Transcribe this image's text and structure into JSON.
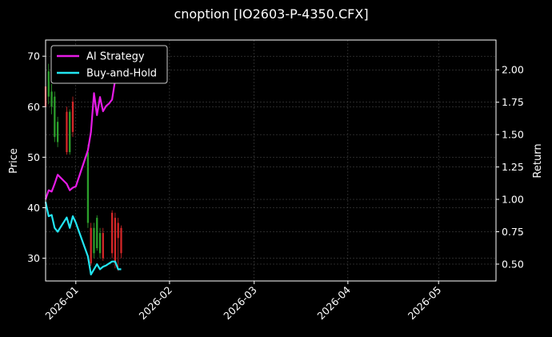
{
  "chart_data": {
    "type": "line",
    "title": "cnoption [IO2603-P-4350.CFX]",
    "xlabel": "",
    "ylabel": "Price",
    "y2label": "Return",
    "x_range": [
      "2025-12-22",
      "2026-05-20"
    ],
    "ylim": [
      25.5,
      73.2
    ],
    "y2lim": [
      0.37,
      2.23
    ],
    "y_ticks": [
      30,
      40,
      50,
      60,
      70
    ],
    "y2_ticks": [
      0.5,
      0.75,
      1.0,
      1.25,
      1.5,
      1.75,
      2.0
    ],
    "y_tick_labels": [
      "30",
      "40",
      "50",
      "60",
      "70"
    ],
    "y2_tick_labels": [
      "0.50",
      "0.75",
      "1.00",
      "1.25",
      "1.50",
      "1.75",
      "2.00"
    ],
    "x_ticks": [
      "2026-01-01",
      "2026-02-01",
      "2026-03-01",
      "2026-04-01",
      "2026-05-01"
    ],
    "x_tick_labels": [
      "2026-01",
      "2026-02",
      "2026-03",
      "2026-04",
      "2026-05"
    ],
    "grid": true,
    "legend_position": "top-left",
    "colors": {
      "background": "#000000",
      "up": "#2ca02c",
      "down": "#d62728",
      "ai": "#e61be6",
      "bh": "#22e5f2",
      "grid": "#555555"
    },
    "series": [
      {
        "name": "AI Strategy",
        "axis": "right",
        "color": "#e61be6",
        "points": [
          [
            "2025-12-22",
            1.0
          ],
          [
            "2025-12-23",
            1.07
          ],
          [
            "2025-12-24",
            1.06
          ],
          [
            "2025-12-25",
            1.12
          ],
          [
            "2025-12-26",
            1.19
          ],
          [
            "2025-12-29",
            1.12
          ],
          [
            "2025-12-30",
            1.07
          ],
          [
            "2025-12-31",
            1.09
          ],
          [
            "2026-01-01",
            1.1
          ],
          [
            "2026-01-02",
            1.17
          ],
          [
            "2026-01-05",
            1.38
          ],
          [
            "2026-01-06",
            1.52
          ],
          [
            "2026-01-07",
            1.82
          ],
          [
            "2026-01-08",
            1.65
          ],
          [
            "2026-01-09",
            1.79
          ],
          [
            "2026-01-10",
            1.68
          ],
          [
            "2026-01-11",
            1.72
          ],
          [
            "2026-01-12",
            1.74
          ],
          [
            "2026-01-13",
            1.77
          ],
          [
            "2026-01-14",
            1.92
          ],
          [
            "2026-01-15",
            2.01
          ],
          [
            "2026-01-16",
            2.15
          ]
        ]
      },
      {
        "name": "Buy-and-Hold",
        "axis": "right",
        "color": "#22e5f2",
        "points": [
          [
            "2025-12-22",
            0.98
          ],
          [
            "2025-12-23",
            0.87
          ],
          [
            "2025-12-24",
            0.88
          ],
          [
            "2025-12-25",
            0.78
          ],
          [
            "2025-12-26",
            0.75
          ],
          [
            "2025-12-29",
            0.86
          ],
          [
            "2025-12-30",
            0.78
          ],
          [
            "2025-12-31",
            0.87
          ],
          [
            "2026-01-01",
            0.82
          ],
          [
            "2026-01-05",
            0.56
          ],
          [
            "2026-01-06",
            0.42
          ],
          [
            "2026-01-07",
            0.46
          ],
          [
            "2026-01-08",
            0.5
          ],
          [
            "2026-01-09",
            0.46
          ],
          [
            "2026-01-10",
            0.48
          ],
          [
            "2026-01-11",
            0.49
          ],
          [
            "2026-01-13",
            0.52
          ],
          [
            "2026-01-14",
            0.52
          ],
          [
            "2026-01-15",
            0.46
          ],
          [
            "2026-01-16",
            0.46
          ]
        ]
      }
    ],
    "candles": [
      {
        "date": "2025-12-22",
        "open": 64.0,
        "close": 60.0,
        "low": 58.5,
        "high": 66.0
      },
      {
        "date": "2025-12-23",
        "open": 62.0,
        "close": 67.0,
        "low": 60.5,
        "high": 68.5
      },
      {
        "date": "2025-12-24",
        "open": 60.0,
        "close": 63.0,
        "low": 58.5,
        "high": 64.5
      },
      {
        "date": "2025-12-25",
        "open": 54.0,
        "close": 62.0,
        "low": 53.0,
        "high": 63.0
      },
      {
        "date": "2025-12-26",
        "open": 53.0,
        "close": 57.0,
        "low": 52.0,
        "high": 58.0
      },
      {
        "date": "2025-12-29",
        "open": 59.0,
        "close": 51.0,
        "low": 50.5,
        "high": 60.0
      },
      {
        "date": "2025-12-30",
        "open": 51.0,
        "close": 59.0,
        "low": 50.5,
        "high": 59.5
      },
      {
        "date": "2025-12-31",
        "open": 61.0,
        "close": 55.0,
        "low": 54.0,
        "high": 62.0
      },
      {
        "date": "2026-01-05",
        "open": 37.0,
        "close": 51.0,
        "low": 36.0,
        "high": 52.5
      },
      {
        "date": "2026-01-06",
        "open": 36.0,
        "close": 29.0,
        "low": 28.5,
        "high": 37.0
      },
      {
        "date": "2026-01-07",
        "open": 31.0,
        "close": 36.0,
        "low": 30.0,
        "high": 37.0
      },
      {
        "date": "2026-01-08",
        "open": 32.0,
        "close": 38.0,
        "low": 31.5,
        "high": 38.5
      },
      {
        "date": "2026-01-09",
        "open": 31.0,
        "close": 35.0,
        "low": 30.0,
        "high": 36.0
      },
      {
        "date": "2026-01-10",
        "open": 35.0,
        "close": 30.0,
        "low": 29.5,
        "high": 36.0
      },
      {
        "date": "2026-01-13",
        "open": 39.0,
        "close": 31.0,
        "low": 30.0,
        "high": 39.5
      },
      {
        "date": "2026-01-14",
        "open": 38.0,
        "close": 29.0,
        "low": 28.0,
        "high": 39.0
      },
      {
        "date": "2026-01-15",
        "open": 37.0,
        "close": 34.0,
        "low": 27.5,
        "high": 38.0
      },
      {
        "date": "2026-01-16",
        "open": 36.0,
        "close": 31.0,
        "low": 30.0,
        "high": 36.5
      }
    ]
  }
}
